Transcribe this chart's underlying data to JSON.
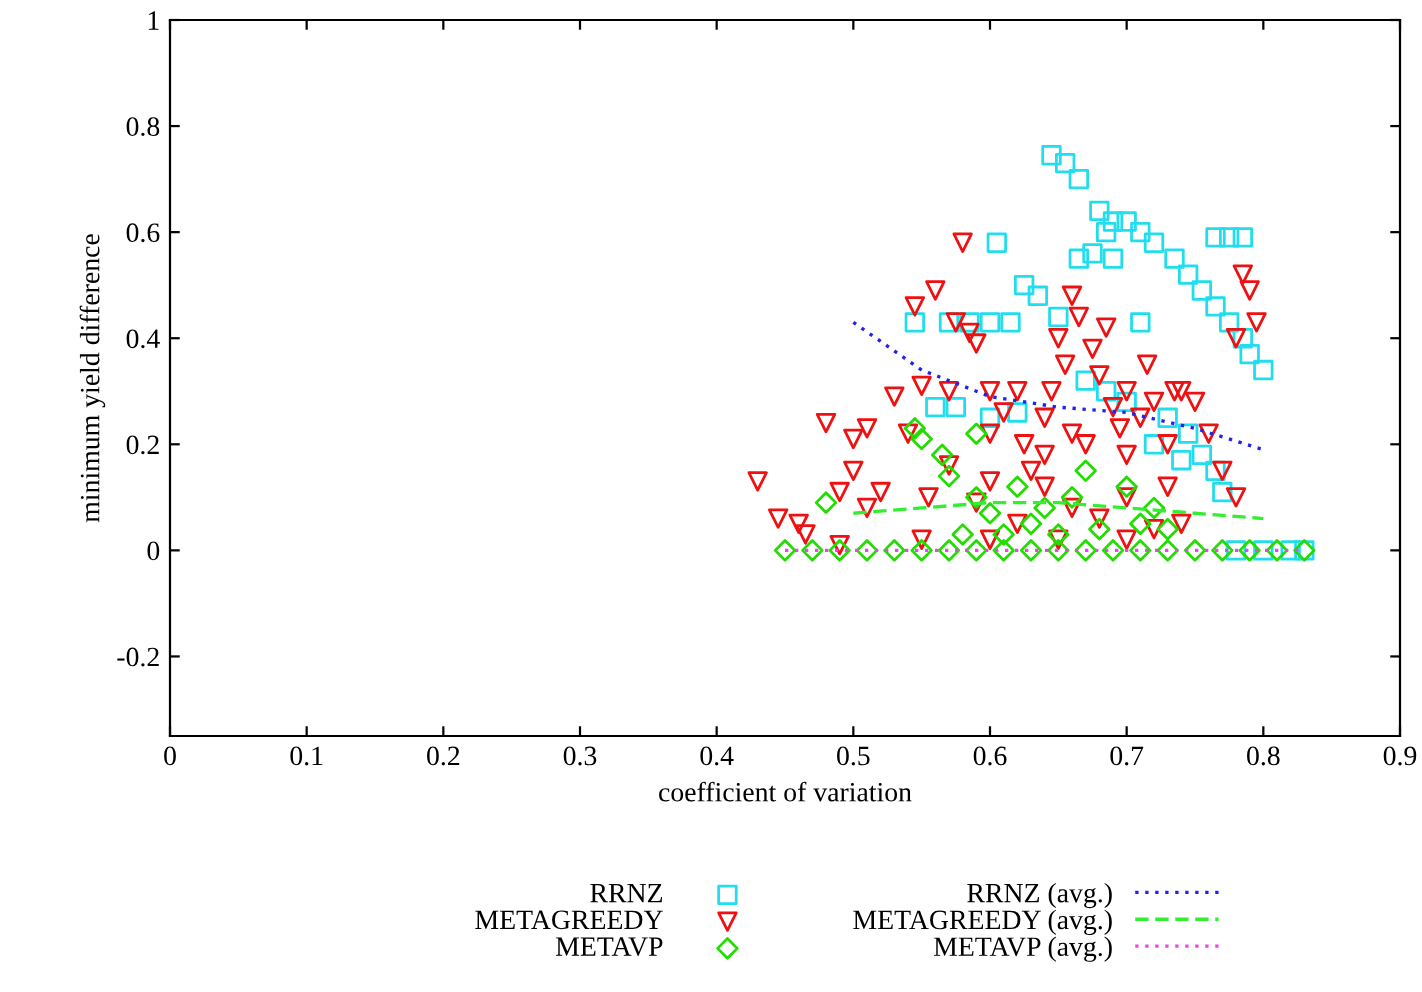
{
  "chart_data": {
    "type": "scatter",
    "xlabel": "coefficient of variation",
    "ylabel": "minimum yield difference",
    "xlim": [
      0,
      0.9
    ],
    "ylim": [
      -0.35,
      1
    ],
    "xticks": [
      0,
      0.1,
      0.2,
      0.3,
      0.4,
      0.5,
      0.6,
      0.7,
      0.8,
      0.9
    ],
    "yticks": [
      -0.2,
      0,
      0.2,
      0.4,
      0.6,
      0.8,
      1
    ],
    "grid": false,
    "legend": "bottom",
    "series": [
      {
        "name": "RRNZ",
        "marker": "square",
        "color": "#22ddee",
        "x": [
          0.645,
          0.655,
          0.665,
          0.68,
          0.69,
          0.685,
          0.7,
          0.71,
          0.72,
          0.735,
          0.745,
          0.755,
          0.765,
          0.775,
          0.785,
          0.79,
          0.8,
          0.765,
          0.775,
          0.785,
          0.605,
          0.665,
          0.675,
          0.69,
          0.625,
          0.635,
          0.65,
          0.545,
          0.57,
          0.585,
          0.6,
          0.615,
          0.71,
          0.56,
          0.575,
          0.67,
          0.685,
          0.7,
          0.73,
          0.745,
          0.755,
          0.765,
          0.77,
          0.72,
          0.74,
          0.6,
          0.62,
          0.78,
          0.8,
          0.82,
          0.83
        ],
        "values": [
          0.745,
          0.73,
          0.7,
          0.64,
          0.62,
          0.6,
          0.62,
          0.6,
          0.58,
          0.55,
          0.52,
          0.49,
          0.46,
          0.43,
          0.4,
          0.37,
          0.34,
          0.59,
          0.59,
          0.59,
          0.58,
          0.55,
          0.56,
          0.55,
          0.5,
          0.48,
          0.44,
          0.43,
          0.43,
          0.43,
          0.43,
          0.43,
          0.43,
          0.27,
          0.27,
          0.32,
          0.3,
          0.28,
          0.25,
          0.22,
          0.18,
          0.15,
          0.11,
          0.2,
          0.17,
          0.25,
          0.26,
          0,
          0,
          0,
          0
        ]
      },
      {
        "name": "METAGREEDY",
        "marker": "triangle",
        "color": "#ee1111",
        "x": [
          0.43,
          0.445,
          0.46,
          0.465,
          0.48,
          0.49,
          0.5,
          0.51,
          0.52,
          0.5,
          0.51,
          0.53,
          0.54,
          0.545,
          0.55,
          0.56,
          0.57,
          0.575,
          0.58,
          0.585,
          0.59,
          0.6,
          0.6,
          0.61,
          0.62,
          0.625,
          0.63,
          0.64,
          0.645,
          0.65,
          0.655,
          0.66,
          0.665,
          0.67,
          0.675,
          0.68,
          0.685,
          0.69,
          0.695,
          0.7,
          0.71,
          0.715,
          0.72,
          0.73,
          0.735,
          0.74,
          0.75,
          0.76,
          0.77,
          0.78,
          0.785,
          0.79,
          0.795,
          0.78,
          0.57,
          0.59,
          0.62,
          0.64,
          0.66,
          0.68,
          0.7,
          0.72,
          0.74,
          0.555,
          0.6,
          0.64,
          0.66,
          0.7,
          0.73,
          0.49,
          0.55,
          0.6,
          0.65,
          0.7
        ],
        "values": [
          0.13,
          0.06,
          0.05,
          0.03,
          0.24,
          0.11,
          0.21,
          0.23,
          0.11,
          0.15,
          0.08,
          0.29,
          0.22,
          0.46,
          0.31,
          0.49,
          0.3,
          0.43,
          0.58,
          0.41,
          0.39,
          0.3,
          0.22,
          0.26,
          0.3,
          0.2,
          0.15,
          0.25,
          0.3,
          0.4,
          0.35,
          0.48,
          0.44,
          0.2,
          0.38,
          0.33,
          0.42,
          0.27,
          0.23,
          0.3,
          0.25,
          0.35,
          0.28,
          0.2,
          0.3,
          0.3,
          0.28,
          0.22,
          0.15,
          0.1,
          0.52,
          0.49,
          0.43,
          0.4,
          0.16,
          0.09,
          0.05,
          0.12,
          0.08,
          0.06,
          0.1,
          0.04,
          0.05,
          0.1,
          0.13,
          0.18,
          0.22,
          0.18,
          0.12,
          0.01,
          0.02,
          0.02,
          0.02,
          0.02
        ]
      },
      {
        "name": "METAVP",
        "marker": "diamond",
        "color": "#22dd00",
        "x": [
          0.45,
          0.47,
          0.49,
          0.51,
          0.53,
          0.55,
          0.57,
          0.59,
          0.61,
          0.63,
          0.65,
          0.67,
          0.69,
          0.71,
          0.73,
          0.75,
          0.77,
          0.79,
          0.81,
          0.83,
          0.48,
          0.545,
          0.55,
          0.565,
          0.57,
          0.59,
          0.59,
          0.6,
          0.62,
          0.63,
          0.64,
          0.66,
          0.67,
          0.68,
          0.7,
          0.71,
          0.72,
          0.73,
          0.58,
          0.61,
          0.65
        ],
        "values": [
          0,
          0,
          0,
          0,
          0,
          0,
          0,
          0,
          0,
          0,
          0,
          0,
          0,
          0,
          0,
          0,
          0,
          0,
          0,
          0,
          0.09,
          0.23,
          0.21,
          0.18,
          0.14,
          0.22,
          0.1,
          0.07,
          0.12,
          0.05,
          0.08,
          0.1,
          0.15,
          0.04,
          0.12,
          0.05,
          0.08,
          0.04,
          0.03,
          0.03,
          0.03
        ]
      },
      {
        "name": "RRNZ (avg.)",
        "type": "line",
        "line_style": "dotted",
        "color": "#2222ee",
        "x": [
          0.5,
          0.55,
          0.6,
          0.65,
          0.7,
          0.75,
          0.8
        ],
        "values": [
          0.43,
          0.34,
          0.29,
          0.27,
          0.26,
          0.23,
          0.19
        ]
      },
      {
        "name": "METAGREEDY (avg.)",
        "type": "line",
        "line_style": "dashed",
        "color": "#33ee33",
        "x": [
          0.5,
          0.55,
          0.6,
          0.65,
          0.7,
          0.75,
          0.8
        ],
        "values": [
          0.07,
          0.08,
          0.09,
          0.09,
          0.08,
          0.07,
          0.06
        ]
      },
      {
        "name": "METAVP (avg.)",
        "type": "line",
        "line_style": "dotted",
        "color": "#ee44ee",
        "x": [
          0.45,
          0.83
        ],
        "values": [
          0,
          0
        ]
      }
    ]
  }
}
